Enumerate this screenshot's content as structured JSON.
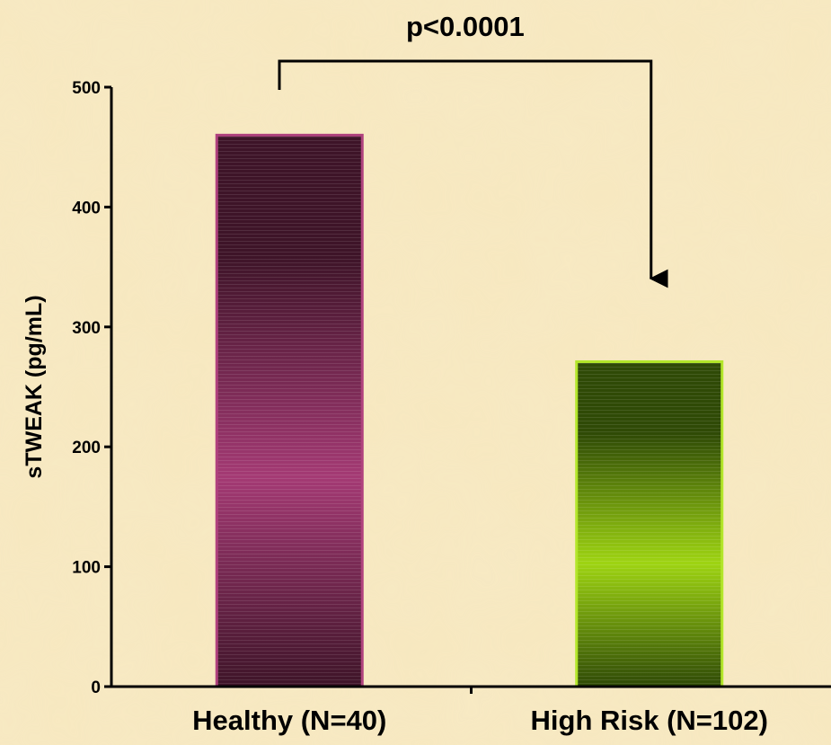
{
  "chart_data": {
    "type": "bar",
    "categories": [
      "Healthy (N=40)",
      "High Risk (N=102)"
    ],
    "values": [
      460,
      271
    ],
    "ylabel": "sTWEAK (pg/mL)",
    "xlabel": "",
    "ylim": [
      0,
      500
    ],
    "yticks": [
      0,
      100,
      200,
      300,
      400,
      500
    ],
    "grid": false,
    "legend": "none",
    "bar_colors": [
      {
        "dark": "#3e1428",
        "mid": "#a43a74",
        "edge": "#b0427e"
      },
      {
        "dark": "#2f4a06",
        "mid": "#9ed412",
        "edge": "#b3e62a"
      }
    ],
    "annotation": {
      "text": "p<0.0001",
      "from_category": 0,
      "to_category": 1
    }
  },
  "background_color": "#f7e8bf"
}
